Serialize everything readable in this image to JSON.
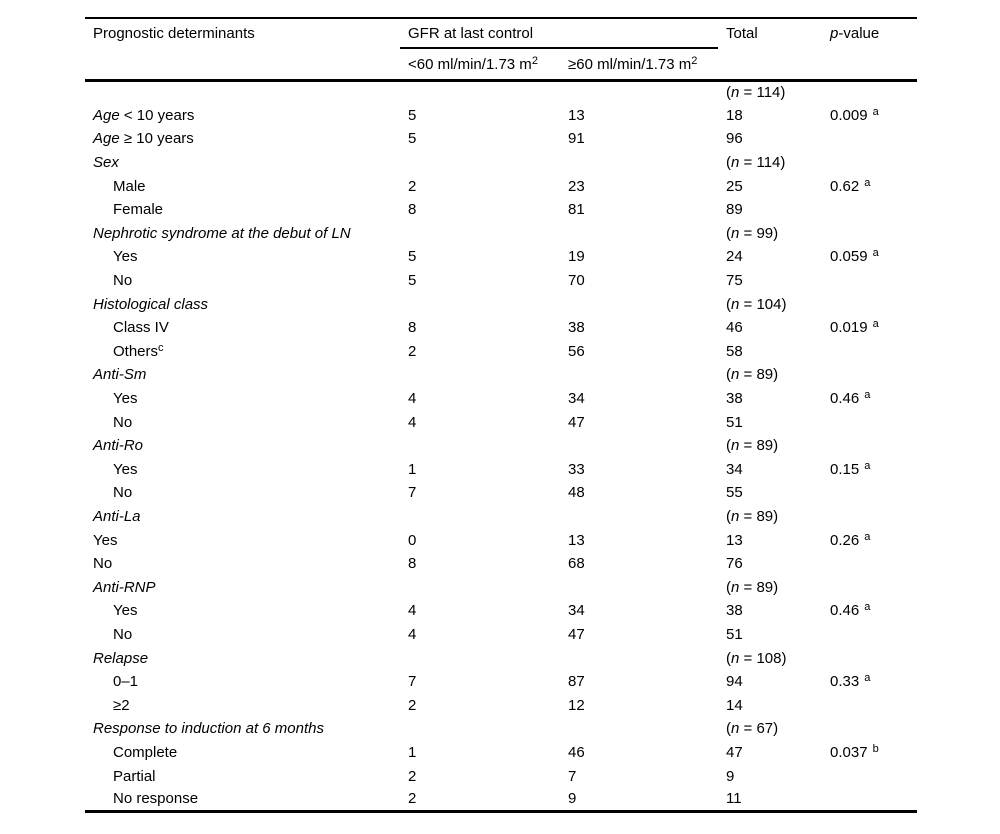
{
  "table": {
    "header": {
      "col_label": "Prognostic determinants",
      "gfr_group": "GFR at last control",
      "sub1_base": "<60 ml/min/1.73 m",
      "sub1_sup": "2",
      "sub2_base": "≥60 ml/min/1.73 m",
      "sub2_sup": "2",
      "total": "Total",
      "p_italic": "p",
      "p_rest": "-value"
    },
    "rows": [
      {
        "label": [],
        "indent": 0,
        "c1": "",
        "c2": "",
        "total": [
          {
            "t": "("
          },
          {
            "t": "n",
            "i": 1
          },
          {
            "t": " = "
          },
          {
            "t": "114"
          },
          {
            "t": ")"
          }
        ],
        "p": []
      },
      {
        "label": [
          {
            "t": "Age",
            "i": 1
          },
          {
            "t": " < 10 years"
          }
        ],
        "indent": 0,
        "c1": "5",
        "c2": "13",
        "total": [
          {
            "t": "18"
          }
        ],
        "p": [
          {
            "t": "0.009"
          },
          {
            "t": "a",
            "s": 1,
            "g": 1
          }
        ]
      },
      {
        "label": [
          {
            "t": "Age",
            "i": 1
          },
          {
            "t": " ≥ 10 years"
          }
        ],
        "indent": 0,
        "c1": "5",
        "c2": "91",
        "total": [
          {
            "t": "96"
          }
        ],
        "p": []
      },
      {
        "label": [
          {
            "t": "Sex",
            "i": 1
          }
        ],
        "indent": 0,
        "c1": "",
        "c2": "",
        "total": [
          {
            "t": "("
          },
          {
            "t": "n",
            "i": 1
          },
          {
            "t": " = "
          },
          {
            "t": "114"
          },
          {
            "t": ")"
          }
        ],
        "p": []
      },
      {
        "label": [
          {
            "t": "Male"
          }
        ],
        "indent": 1,
        "c1": "2",
        "c2": "23",
        "total": [
          {
            "t": "25"
          }
        ],
        "p": [
          {
            "t": "0.62"
          },
          {
            "t": "a",
            "s": 1,
            "g": 1
          }
        ]
      },
      {
        "label": [
          {
            "t": "Female"
          }
        ],
        "indent": 1,
        "c1": "8",
        "c2": "81",
        "total": [
          {
            "t": "89"
          }
        ],
        "p": []
      },
      {
        "label": [
          {
            "t": "Nephrotic syndrome at the debut of LN",
            "i": 1
          }
        ],
        "indent": 0,
        "c1": "",
        "c2": "",
        "total": [
          {
            "t": "("
          },
          {
            "t": "n",
            "i": 1
          },
          {
            "t": " = "
          },
          {
            "t": "99"
          },
          {
            "t": ")"
          }
        ],
        "p": []
      },
      {
        "label": [
          {
            "t": "Yes"
          }
        ],
        "indent": 1,
        "c1": "5",
        "c2": "19",
        "total": [
          {
            "t": "24"
          }
        ],
        "p": [
          {
            "t": "0.059"
          },
          {
            "t": "a",
            "s": 1,
            "g": 1
          }
        ]
      },
      {
        "label": [
          {
            "t": "No"
          }
        ],
        "indent": 1,
        "c1": "5",
        "c2": "70",
        "total": [
          {
            "t": "75"
          }
        ],
        "p": []
      },
      {
        "label": [
          {
            "t": "Histological class",
            "i": 1
          }
        ],
        "indent": 0,
        "c1": "",
        "c2": "",
        "total": [
          {
            "t": "("
          },
          {
            "t": "n",
            "i": 1
          },
          {
            "t": " = "
          },
          {
            "t": "104"
          },
          {
            "t": ")"
          }
        ],
        "p": []
      },
      {
        "label": [
          {
            "t": "Class IV"
          }
        ],
        "indent": 1,
        "c1": "8",
        "c2": "38",
        "total": [
          {
            "t": "46"
          }
        ],
        "p": [
          {
            "t": "0.019"
          },
          {
            "t": "a",
            "s": 1,
            "g": 1
          }
        ]
      },
      {
        "label": [
          {
            "t": "Others"
          },
          {
            "t": "c",
            "s": 1
          }
        ],
        "indent": 1,
        "c1": "2",
        "c2": "56",
        "total": [
          {
            "t": "58"
          }
        ],
        "p": []
      },
      {
        "label": [
          {
            "t": "Anti-Sm",
            "i": 1
          }
        ],
        "indent": 0,
        "c1": "",
        "c2": "",
        "total": [
          {
            "t": "("
          },
          {
            "t": "n",
            "i": 1
          },
          {
            "t": " = "
          },
          {
            "t": "89"
          },
          {
            "t": ")"
          }
        ],
        "p": []
      },
      {
        "label": [
          {
            "t": "Yes"
          }
        ],
        "indent": 1,
        "c1": "4",
        "c2": "34",
        "total": [
          {
            "t": "38"
          }
        ],
        "p": [
          {
            "t": "0.46"
          },
          {
            "t": "a",
            "s": 1,
            "g": 1
          }
        ]
      },
      {
        "label": [
          {
            "t": "No"
          }
        ],
        "indent": 1,
        "c1": "4",
        "c2": "47",
        "total": [
          {
            "t": "51"
          }
        ],
        "p": []
      },
      {
        "label": [
          {
            "t": "Anti-Ro",
            "i": 1
          }
        ],
        "indent": 0,
        "c1": "",
        "c2": "",
        "total": [
          {
            "t": "("
          },
          {
            "t": "n",
            "i": 1
          },
          {
            "t": " = "
          },
          {
            "t": "89"
          },
          {
            "t": ")"
          }
        ],
        "p": []
      },
      {
        "label": [
          {
            "t": "Yes"
          }
        ],
        "indent": 1,
        "c1": "1",
        "c2": "33",
        "total": [
          {
            "t": "34"
          }
        ],
        "p": [
          {
            "t": "0.15"
          },
          {
            "t": "a",
            "s": 1,
            "g": 1
          }
        ]
      },
      {
        "label": [
          {
            "t": "No"
          }
        ],
        "indent": 1,
        "c1": "7",
        "c2": "48",
        "total": [
          {
            "t": "55"
          }
        ],
        "p": []
      },
      {
        "label": [
          {
            "t": "Anti-La",
            "i": 1
          }
        ],
        "indent": 0,
        "c1": "",
        "c2": "",
        "total": [
          {
            "t": "("
          },
          {
            "t": "n",
            "i": 1
          },
          {
            "t": " = "
          },
          {
            "t": "89"
          },
          {
            "t": ")"
          }
        ],
        "p": []
      },
      {
        "label": [
          {
            "t": "Yes"
          }
        ],
        "indent": 0,
        "c1": "0",
        "c2": "13",
        "total": [
          {
            "t": "13"
          }
        ],
        "p": [
          {
            "t": "0.26"
          },
          {
            "t": "a",
            "s": 1,
            "g": 1
          }
        ]
      },
      {
        "label": [
          {
            "t": "No"
          }
        ],
        "indent": 0,
        "c1": "8",
        "c2": "68",
        "total": [
          {
            "t": "76"
          }
        ],
        "p": []
      },
      {
        "label": [
          {
            "t": "Anti-RNP",
            "i": 1
          }
        ],
        "indent": 0,
        "c1": "",
        "c2": "",
        "total": [
          {
            "t": "("
          },
          {
            "t": "n",
            "i": 1
          },
          {
            "t": " = "
          },
          {
            "t": "89"
          },
          {
            "t": ")"
          }
        ],
        "p": []
      },
      {
        "label": [
          {
            "t": "Yes"
          }
        ],
        "indent": 1,
        "c1": "4",
        "c2": "34",
        "total": [
          {
            "t": "38"
          }
        ],
        "p": [
          {
            "t": "0.46"
          },
          {
            "t": "a",
            "s": 1,
            "g": 1
          }
        ]
      },
      {
        "label": [
          {
            "t": "No"
          }
        ],
        "indent": 1,
        "c1": "4",
        "c2": "47",
        "total": [
          {
            "t": "51"
          }
        ],
        "p": []
      },
      {
        "label": [
          {
            "t": "Relapse",
            "i": 1
          }
        ],
        "indent": 0,
        "c1": "",
        "c2": "",
        "total": [
          {
            "t": "("
          },
          {
            "t": "n",
            "i": 1
          },
          {
            "t": " = "
          },
          {
            "t": "108"
          },
          {
            "t": ")"
          }
        ],
        "p": []
      },
      {
        "label": [
          {
            "t": "0–1"
          }
        ],
        "indent": 1,
        "c1": "7",
        "c2": "87",
        "total": [
          {
            "t": "94"
          }
        ],
        "p": [
          {
            "t": "0.33"
          },
          {
            "t": "a",
            "s": 1,
            "g": 1
          }
        ]
      },
      {
        "label": [
          {
            "t": "≥2"
          }
        ],
        "indent": 1,
        "c1": "2",
        "c2": "12",
        "total": [
          {
            "t": "14"
          }
        ],
        "p": []
      },
      {
        "label": [
          {
            "t": "Response to induction at 6 months",
            "i": 1
          }
        ],
        "indent": 0,
        "c1": "",
        "c2": "",
        "total": [
          {
            "t": "("
          },
          {
            "t": "n",
            "i": 1
          },
          {
            "t": " = "
          },
          {
            "t": "67"
          },
          {
            "t": ")"
          }
        ],
        "p": []
      },
      {
        "label": [
          {
            "t": "Complete"
          }
        ],
        "indent": 1,
        "c1": "1",
        "c2": "46",
        "total": [
          {
            "t": "47"
          }
        ],
        "p": [
          {
            "t": "0.037"
          },
          {
            "t": "b",
            "s": 1,
            "g": 1
          }
        ]
      },
      {
        "label": [
          {
            "t": "Partial"
          }
        ],
        "indent": 1,
        "c1": "2",
        "c2": "7",
        "total": [
          {
            "t": "9"
          }
        ],
        "p": []
      },
      {
        "label": [
          {
            "t": "No response"
          }
        ],
        "indent": 1,
        "c1": "2",
        "c2": "9",
        "total": [
          {
            "t": "11"
          }
        ],
        "p": []
      }
    ]
  }
}
